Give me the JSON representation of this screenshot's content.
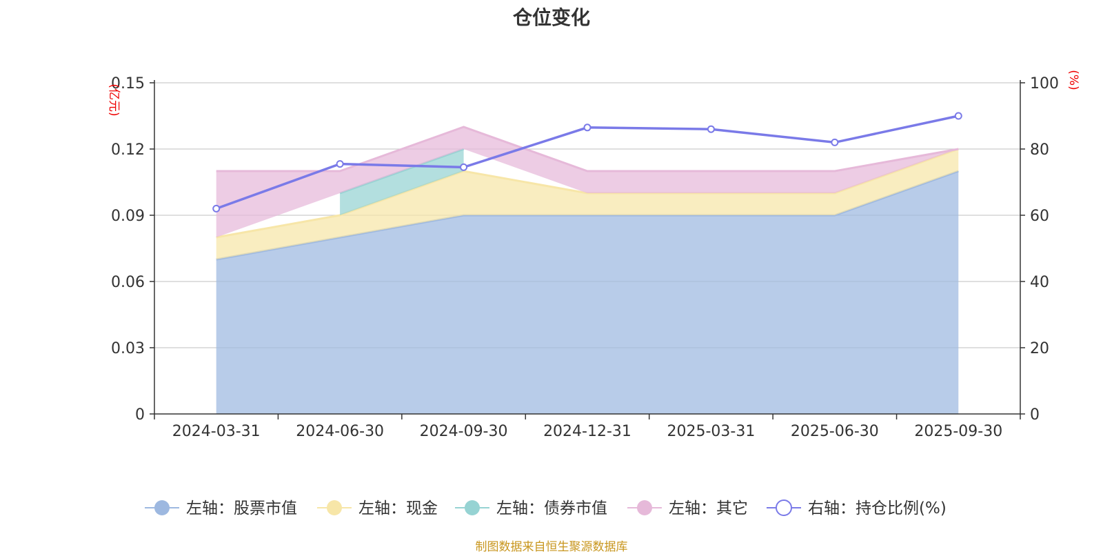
{
  "chart_data": {
    "type": "area",
    "title": "仓位变化",
    "categories": [
      "2024-03-31",
      "2024-06-30",
      "2024-09-30",
      "2024-12-31",
      "2025-03-31",
      "2025-06-30",
      "2025-09-30"
    ],
    "left_axis": {
      "unit": "(亿元)",
      "ylim": [
        0,
        0.15
      ],
      "ticks": [
        "0",
        "0.03",
        "0.06",
        "0.09",
        "0.12",
        "0.15"
      ]
    },
    "right_axis": {
      "unit": "(%)",
      "ylim": [
        0,
        100
      ],
      "ticks": [
        "0",
        "20",
        "40",
        "60",
        "80",
        "100"
      ]
    },
    "series": [
      {
        "name": "左轴：股票市值",
        "axis": "left",
        "kind": "stacked-area",
        "color": "#9db8e0",
        "values": [
          0.07,
          0.08,
          0.09,
          0.09,
          0.09,
          0.09,
          0.11
        ]
      },
      {
        "name": "左轴：现金",
        "axis": "left",
        "kind": "stacked-area",
        "color": "#f7e6a8",
        "values": [
          0.01,
          0.01,
          0.02,
          0.01,
          0.01,
          0.01,
          0.01
        ]
      },
      {
        "name": "左轴：债券市值",
        "axis": "left",
        "kind": "stacked-area",
        "color": "#96d3d3",
        "values": [
          null,
          0.01,
          0.01,
          null,
          null,
          null,
          null
        ]
      },
      {
        "name": "左轴：其它",
        "axis": "left",
        "kind": "stacked-area",
        "color": "#e6b9d9",
        "values": [
          0.03,
          0.01,
          0.01,
          0.01,
          0.01,
          0.01,
          0.0
        ]
      },
      {
        "name": "右轴：持仓比例(%)",
        "axis": "right",
        "kind": "line",
        "color": "#7a7ae8",
        "values": [
          62,
          75.5,
          74.5,
          86.5,
          86,
          82,
          90
        ]
      }
    ],
    "grid": true,
    "legend_position": "bottom"
  },
  "footer": {
    "source": "制图数据来自恒生聚源数据库"
  }
}
